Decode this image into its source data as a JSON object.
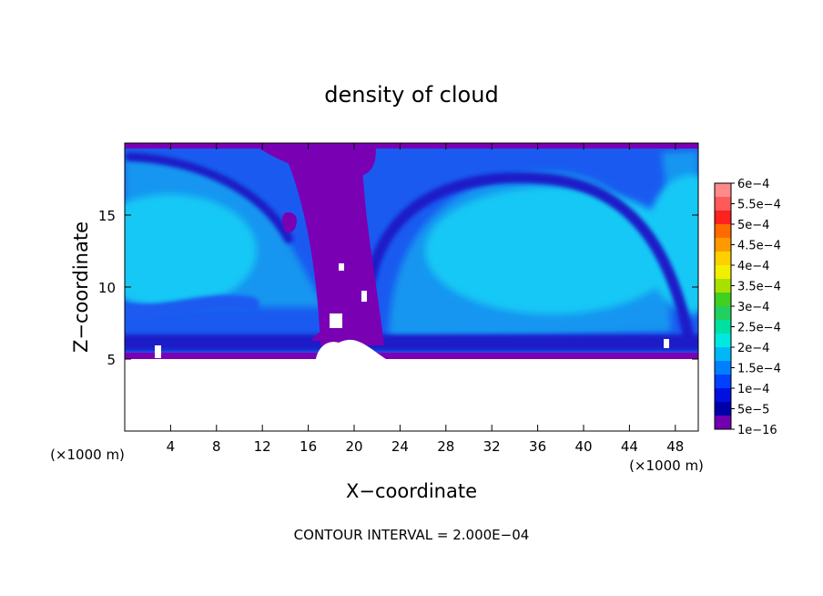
{
  "chart_data": {
    "type": "heatmap",
    "title": "density of cloud",
    "xlabel": "X−coordinate",
    "ylabel": "Z−coordinate",
    "x_unit_label": "(×1000 m)",
    "y_unit_label": "(×1000 m)",
    "xlim": [
      0,
      50
    ],
    "ylim": [
      0,
      20
    ],
    "x_ticks": [
      4,
      8,
      12,
      16,
      20,
      24,
      28,
      32,
      36,
      40,
      44,
      48
    ],
    "y_ticks": [
      5,
      10,
      15
    ],
    "x_tick_labels": [
      "4",
      "8",
      "12",
      "16",
      "20",
      "24",
      "28",
      "32",
      "36",
      "40",
      "44",
      "48"
    ],
    "y_tick_labels": [
      "5",
      "10",
      "15"
    ],
    "field_base_z": 5,
    "footer": "CONTOUR INTERVAL = 2.000E−04",
    "colorbar": {
      "labels": [
        "6e−4",
        "5.5e−4",
        "5e−4",
        "4.5e−4",
        "4e−4",
        "3.5e−4",
        "3e−4",
        "2.5e−4",
        "2e−4",
        "1.5e−4",
        "1e−4",
        "5e−5",
        "1e−16"
      ],
      "colors_top_to_bottom": [
        "#ff8a8a",
        "#ff5a5a",
        "#ff2020",
        "#ff6a00",
        "#ff9900",
        "#ffd000",
        "#f0f000",
        "#a8e000",
        "#40d020",
        "#20d060",
        "#00e0a0",
        "#00e8e0",
        "#00b8f8",
        "#0080ff",
        "#0040ff",
        "#0010e0",
        "#0000a8",
        "#7000b0"
      ]
    },
    "colors": {
      "low": "#7a00b4",
      "dark_blue": "#1a1ac8",
      "mid_blue": "#1a5af0",
      "light_blue": "#1896f0",
      "cyan": "#14c8f5",
      "empty": "#ffffff"
    }
  }
}
